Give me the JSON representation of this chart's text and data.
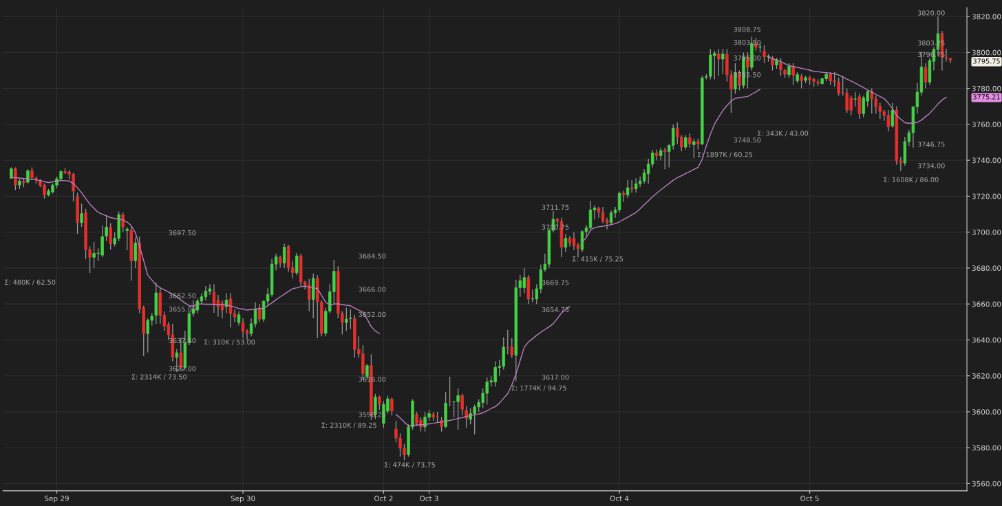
{
  "chart_data": {
    "type": "candlestick",
    "categories": [
      null,
      null,
      null,
      null,
      null,
      null,
      null,
      null,
      null,
      null,
      null,
      "Sep 29",
      null,
      null,
      null,
      null,
      null,
      null,
      null,
      null,
      null,
      null,
      null,
      null,
      null,
      null,
      null,
      null,
      null,
      null,
      null,
      null,
      null,
      null,
      null,
      null,
      null,
      null,
      null,
      null,
      null,
      null,
      null,
      null,
      null,
      null,
      null,
      null,
      null,
      null,
      null,
      null,
      null,
      null,
      null,
      null,
      "Sep 30",
      null,
      null,
      null,
      null,
      null,
      null,
      null,
      null,
      null,
      null,
      null,
      null,
      null,
      null,
      null,
      null,
      null,
      null,
      null,
      null,
      null,
      null,
      null,
      null,
      null,
      null,
      null,
      null,
      null,
      null,
      null,
      null,
      null,
      "Oct 2",
      null,
      null,
      null,
      null,
      null,
      null,
      null,
      null,
      null,
      null,
      "Oct 3",
      null,
      null,
      null,
      null,
      null,
      null,
      null,
      null,
      null,
      null,
      null,
      null,
      null,
      null,
      null,
      null,
      null,
      null,
      null,
      null,
      null,
      null,
      null,
      null,
      null,
      null,
      null,
      null,
      null,
      null,
      null,
      null,
      null,
      null,
      null,
      null,
      null,
      null,
      null,
      null,
      null,
      null,
      null,
      null,
      null,
      "Oct 4",
      null,
      null,
      null,
      null,
      null,
      null,
      null,
      null,
      null,
      null,
      null,
      null,
      null,
      null,
      null,
      null,
      null,
      null,
      null,
      null,
      null,
      null,
      null,
      null,
      null,
      null,
      null,
      null,
      null,
      null,
      null,
      null,
      null,
      null,
      null,
      null,
      null,
      null,
      null,
      null,
      null,
      null,
      null,
      null,
      null,
      "Oct 5",
      null,
      null,
      null,
      null,
      null,
      null,
      null,
      null,
      null,
      null,
      null,
      null,
      null,
      null,
      null,
      null,
      null,
      null,
      null,
      null,
      null,
      null,
      null,
      null,
      null,
      null,
      null,
      null,
      null,
      null,
      null,
      null,
      null,
      null
    ],
    "ohlc": [
      [
        3730.0,
        3736.0,
        3729.7,
        3735.3
      ],
      [
        3735.3,
        3736.0,
        3723.5,
        3726.2
      ],
      [
        3726.2,
        3729.5,
        3724.0,
        3728.5
      ],
      [
        3728.5,
        3730.0,
        3725.0,
        3727.5
      ],
      [
        3727.8,
        3735.0,
        3727.0,
        3734.1
      ],
      [
        3734.1,
        3736.0,
        3729.0,
        3730.3
      ],
      [
        3730.0,
        3731.0,
        3727.0,
        3729.0
      ],
      [
        3728.7,
        3729.5,
        3725.0,
        3726.0
      ],
      [
        3726.2,
        3727.0,
        3718.7,
        3720.7
      ],
      [
        3720.7,
        3724.0,
        3720.0,
        3722.8
      ],
      [
        3722.4,
        3727.0,
        3721.5,
        3726.2
      ],
      [
        3726.2,
        3731.0,
        3724.5,
        3729.7
      ],
      [
        3729.7,
        3734.5,
        3729.0,
        3733.7
      ],
      [
        3733.7,
        3735.7,
        3732.5,
        3733.0
      ],
      [
        3733.5,
        3734.5,
        3729.5,
        3732.2
      ],
      [
        3732.2,
        3733.0,
        3717.2,
        3722.8
      ],
      [
        3719.7,
        3722.0,
        3699.1,
        3705.3
      ],
      [
        3705.3,
        3715.8,
        3702.8,
        3710.3
      ],
      [
        3711.0,
        3713.0,
        3685.0,
        3690.3
      ],
      [
        3690.3,
        3692.0,
        3677.2,
        3686.0
      ],
      [
        3686.0,
        3694.6,
        3680.0,
        3688.2
      ],
      [
        3688.2,
        3691.0,
        3684.0,
        3688.4
      ],
      [
        3687.2,
        3703.5,
        3686.0,
        3697.5
      ],
      [
        3697.8,
        3709.4,
        3695.0,
        3702.8
      ],
      [
        3702.8,
        3705.0,
        3690.3,
        3693.5
      ],
      [
        3693.5,
        3700.0,
        3692.0,
        3696.6
      ],
      [
        3696.6,
        3711.5,
        3695.0,
        3709.7
      ],
      [
        3709.7,
        3711.0,
        3700.0,
        3702.8
      ],
      [
        3700.9,
        3702.8,
        3690.0,
        3701.7
      ],
      [
        3701.0,
        3703.0,
        3673.0,
        3684.1
      ],
      [
        3684.1,
        3697.0,
        3680.0,
        3694.0
      ],
      [
        3694.0,
        3697.5,
        3655.0,
        3657.2
      ],
      [
        3657.8,
        3659.0,
        3631.0,
        3643.5
      ],
      [
        3643.5,
        3652.0,
        3633.0,
        3650.9
      ],
      [
        3650.9,
        3655.0,
        3648.0,
        3653.2
      ],
      [
        3653.7,
        3671.7,
        3649.0,
        3666.2
      ],
      [
        3666.2,
        3669.0,
        3649.0,
        3653.7
      ],
      [
        3653.7,
        3656.0,
        3645.0,
        3647.8
      ],
      [
        3648.5,
        3650.0,
        3640.0,
        3642.8
      ],
      [
        3642.8,
        3649.0,
        3628.0,
        3630.3
      ],
      [
        3630.3,
        3635.0,
        3622.2,
        3632.8
      ],
      [
        3632.8,
        3641.0,
        3623.0,
        3624.7
      ],
      [
        3624.7,
        3645.0,
        3623.4,
        3638.5
      ],
      [
        3638.5,
        3655.6,
        3637.0,
        3654.7
      ],
      [
        3654.7,
        3662.0,
        3653.0,
        3657.2
      ],
      [
        3656.6,
        3663.0,
        3655.0,
        3661.6
      ],
      [
        3661.6,
        3666.0,
        3660.0,
        3664.0
      ],
      [
        3664.0,
        3670.0,
        3662.0,
        3667.2
      ],
      [
        3667.0,
        3671.0,
        3665.0,
        3668.5
      ],
      [
        3666.6,
        3671.0,
        3655.0,
        3659.7
      ],
      [
        3662.2,
        3665.0,
        3653.0,
        3658.5
      ],
      [
        3660.3,
        3662.0,
        3652.0,
        3656.6
      ],
      [
        3658.5,
        3666.0,
        3655.0,
        3662.2
      ],
      [
        3662.8,
        3666.0,
        3647.0,
        3654.7
      ],
      [
        3654.7,
        3657.0,
        3650.0,
        3652.8
      ],
      [
        3649.7,
        3656.0,
        3648.0,
        3654.0
      ],
      [
        3649.7,
        3652.0,
        3641.0,
        3644.7
      ],
      [
        3644.7,
        3646.0,
        3640.0,
        3643.5
      ],
      [
        3643.5,
        3652.0,
        3642.0,
        3649.0
      ],
      [
        3649.0,
        3661.0,
        3647.0,
        3657.2
      ],
      [
        3657.8,
        3660.0,
        3650.0,
        3651.6
      ],
      [
        3651.6,
        3662.0,
        3650.0,
        3661.6
      ],
      [
        3661.6,
        3669.0,
        3659.0,
        3665.3
      ],
      [
        3665.3,
        3685.0,
        3664.0,
        3682.2
      ],
      [
        3682.2,
        3688.0,
        3678.7,
        3686.2
      ],
      [
        3685.9,
        3687.0,
        3680.5,
        3682.8
      ],
      [
        3682.8,
        3693.5,
        3680.0,
        3691.6
      ],
      [
        3692.0,
        3693.0,
        3678.0,
        3680.3
      ],
      [
        3680.3,
        3684.0,
        3674.3,
        3677.4
      ],
      [
        3677.4,
        3688.5,
        3676.0,
        3686.8
      ],
      [
        3686.8,
        3688.0,
        3669.7,
        3672.2
      ],
      [
        3672.2,
        3673.0,
        3668.0,
        3670.3
      ],
      [
        3670.6,
        3674.0,
        3656.0,
        3662.5
      ],
      [
        3662.5,
        3677.0,
        3652.0,
        3674.3
      ],
      [
        3674.3,
        3676.0,
        3641.0,
        3661.2
      ],
      [
        3661.0,
        3662.0,
        3642.0,
        3643.7
      ],
      [
        3643.7,
        3658.0,
        3642.0,
        3656.0
      ],
      [
        3656.0,
        3671.0,
        3655.0,
        3666.8
      ],
      [
        3666.8,
        3684.5,
        3660.0,
        3678.2
      ],
      [
        3678.2,
        3681.0,
        3652.0,
        3654.7
      ],
      [
        3654.7,
        3656.0,
        3643.0,
        3649.7
      ],
      [
        3649.7,
        3658.0,
        3645.0,
        3651.6
      ],
      [
        3651.9,
        3657.0,
        3646.0,
        3652.2
      ],
      [
        3651.9,
        3654.0,
        3630.0,
        3634.7
      ],
      [
        3634.7,
        3642.0,
        3630.0,
        3632.2
      ],
      [
        3632.2,
        3637.0,
        3618.0,
        3621.2
      ],
      [
        3619.7,
        3626.5,
        3618.0,
        3625.7
      ],
      [
        3625.7,
        3632.0,
        3595.5,
        3598.5
      ],
      [
        3598.5,
        3610.0,
        3596.0,
        3608.2
      ],
      [
        3608.2,
        3609.0,
        3601.0,
        3604.1
      ],
      [
        3593.5,
        3606.0,
        3591.0,
        3604.1
      ],
      [
        3600.4,
        3609.0,
        3599.0,
        3607.2
      ],
      [
        3607.0,
        3608.0,
        3598.0,
        3600.5
      ],
      [
        3590.4,
        3595.0,
        3583.0,
        3585.4
      ],
      [
        3585.4,
        3588.0,
        3575.0,
        3579.7
      ],
      [
        3579.7,
        3582.0,
        3573.0,
        3576.0
      ],
      [
        3576.2,
        3593.0,
        3575.0,
        3591.6
      ],
      [
        3591.6,
        3607.0,
        3590.0,
        3606.0
      ],
      [
        3598.5,
        3600.0,
        3592.0,
        3593.5
      ],
      [
        3595.4,
        3597.0,
        3589.0,
        3591.6
      ],
      [
        3591.6,
        3600.0,
        3589.0,
        3597.0
      ],
      [
        3597.0,
        3601.0,
        3595.0,
        3599.0
      ],
      [
        3598.5,
        3600.0,
        3595.0,
        3597.0
      ],
      [
        3597.3,
        3600.0,
        3594.0,
        3597.2
      ],
      [
        3595.2,
        3597.0,
        3589.0,
        3591.8
      ],
      [
        3591.8,
        3611.0,
        3591.0,
        3604.8
      ],
      [
        3605.6,
        3619.5,
        3603.0,
        3605.5
      ],
      [
        3605.5,
        3606.0,
        3597.0,
        3605.6
      ],
      [
        3605.6,
        3613.0,
        3590.0,
        3609.0
      ],
      [
        3609.0,
        3610.0,
        3598.0,
        3601.4
      ],
      [
        3600.8,
        3603.0,
        3591.0,
        3596.4
      ],
      [
        3595.8,
        3602.0,
        3593.0,
        3599.0
      ],
      [
        3599.0,
        3604.0,
        3587.5,
        3602.7
      ],
      [
        3602.7,
        3607.0,
        3600.0,
        3605.2
      ],
      [
        3605.2,
        3613.0,
        3602.0,
        3610.3
      ],
      [
        3610.3,
        3619.0,
        3604.0,
        3616.6
      ],
      [
        3616.6,
        3620.0,
        3614.0,
        3617.3
      ],
      [
        3616.6,
        3628.0,
        3614.0,
        3624.7
      ],
      [
        3624.7,
        3629.0,
        3620.0,
        3625.3
      ],
      [
        3625.3,
        3641.5,
        3623.5,
        3636.0
      ],
      [
        3636.0,
        3645.6,
        3632.0,
        3635.7
      ],
      [
        3636.0,
        3641.0,
        3630.0,
        3631.5
      ],
      [
        3631.5,
        3673.5,
        3617.0,
        3669.0
      ],
      [
        3669.0,
        3676.0,
        3664.0,
        3673.0
      ],
      [
        3669.0,
        3680.0,
        3666.0,
        3674.7
      ],
      [
        3674.7,
        3676.0,
        3660.0,
        3662.8
      ],
      [
        3662.8,
        3668.0,
        3661.0,
        3663.0
      ],
      [
        3662.8,
        3671.0,
        3660.0,
        3668.5
      ],
      [
        3668.5,
        3682.0,
        3666.0,
        3679.1
      ],
      [
        3679.1,
        3688.0,
        3678.0,
        3682.2
      ],
      [
        3682.2,
        3702.0,
        3680.0,
        3701.0
      ],
      [
        3701.0,
        3711.7,
        3700.0,
        3707.2
      ],
      [
        3707.2,
        3708.0,
        3703.0,
        3706.0
      ],
      [
        3706.0,
        3708.0,
        3686.0,
        3691.6
      ],
      [
        3691.6,
        3699.0,
        3689.0,
        3696.6
      ],
      [
        3696.6,
        3698.0,
        3692.0,
        3694.1
      ],
      [
        3696.5,
        3700.0,
        3690.0,
        3692.4
      ],
      [
        3692.8,
        3694.0,
        3686.0,
        3690.9
      ],
      [
        3690.3,
        3701.0,
        3689.0,
        3700.3
      ],
      [
        3700.3,
        3704.0,
        3698.0,
        3702.4
      ],
      [
        3702.4,
        3717.4,
        3701.0,
        3712.4
      ],
      [
        3712.4,
        3715.0,
        3707.0,
        3713.4
      ],
      [
        3713.4,
        3714.0,
        3708.0,
        3711.2
      ],
      [
        3710.9,
        3714.0,
        3705.0,
        3706.2
      ],
      [
        3706.6,
        3708.0,
        3701.5,
        3705.3
      ],
      [
        3705.3,
        3712.0,
        3704.0,
        3710.7
      ],
      [
        3710.7,
        3714.0,
        3708.0,
        3712.4
      ],
      [
        3712.4,
        3722.5,
        3711.0,
        3721.6
      ],
      [
        3721.6,
        3723.0,
        3717.0,
        3720.7
      ],
      [
        3720.7,
        3729.0,
        3719.0,
        3724.7
      ],
      [
        3724.7,
        3729.0,
        3722.0,
        3724.1
      ],
      [
        3724.1,
        3730.0,
        3722.0,
        3726.9
      ],
      [
        3726.9,
        3731.0,
        3725.0,
        3728.5
      ],
      [
        3728.5,
        3735.0,
        3727.0,
        3732.9
      ],
      [
        3732.5,
        3740.9,
        3727.0,
        3737.9
      ],
      [
        3737.9,
        3745.7,
        3736.0,
        3744.1
      ],
      [
        3744.1,
        3746.0,
        3740.0,
        3742.5
      ],
      [
        3742.5,
        3747.0,
        3740.0,
        3745.4
      ],
      [
        3745.6,
        3747.0,
        3735.0,
        3744.8
      ],
      [
        3744.8,
        3749.0,
        3736.0,
        3748.3
      ],
      [
        3748.3,
        3760.0,
        3746.0,
        3757.9
      ],
      [
        3757.9,
        3761.0,
        3749.0,
        3752.9
      ],
      [
        3752.9,
        3754.0,
        3745.0,
        3747.3
      ],
      [
        3747.3,
        3754.0,
        3746.0,
        3752.6
      ],
      [
        3752.6,
        3755.0,
        3747.0,
        3749.1
      ],
      [
        3748.7,
        3752.0,
        3741.2,
        3750.4
      ],
      [
        3750.4,
        3752.0,
        3746.0,
        3749.1
      ],
      [
        3749.1,
        3787.0,
        3748.5,
        3785.8
      ],
      [
        3786.2,
        3788.0,
        3785.0,
        3786.5
      ],
      [
        3786.7,
        3802.0,
        3785.0,
        3798.6
      ],
      [
        3798.2,
        3801.0,
        3785.0,
        3799.5
      ],
      [
        3799.2,
        3802.0,
        3787.0,
        3796.3
      ],
      [
        3796.3,
        3802.0,
        3788.0,
        3799.2
      ],
      [
        3799.0,
        3802.0,
        3783.8,
        3787.6
      ],
      [
        3787.6,
        3790.0,
        3766.5,
        3779.6
      ],
      [
        3779.6,
        3794.0,
        3777.0,
        3788.8
      ],
      [
        3788.8,
        3790.0,
        3779.0,
        3781.7
      ],
      [
        3781.7,
        3800.0,
        3780.0,
        3797.3
      ],
      [
        3797.3,
        3800.0,
        3780.0,
        3791.7
      ],
      [
        3791.7,
        3808.75,
        3790.0,
        3805.1
      ],
      [
        3805.1,
        3808.0,
        3801.0,
        3803.0
      ],
      [
        3803.0,
        3806.0,
        3800.0,
        3803.2
      ],
      [
        3800.7,
        3804.0,
        3794.0,
        3797.6
      ],
      [
        3797.6,
        3799.0,
        3795.0,
        3798.0
      ],
      [
        3797.0,
        3798.0,
        3790.0,
        3793.0
      ],
      [
        3793.0,
        3797.0,
        3791.0,
        3796.0
      ],
      [
        3794.2,
        3797.0,
        3787.0,
        3790.4
      ],
      [
        3790.0,
        3791.0,
        3786.0,
        3787.9
      ],
      [
        3787.6,
        3794.0,
        3786.0,
        3792.3
      ],
      [
        3792.3,
        3794.0,
        3782.0,
        3787.3
      ],
      [
        3784.2,
        3789.0,
        3783.0,
        3787.7
      ],
      [
        3786.7,
        3788.0,
        3780.0,
        3784.2
      ],
      [
        3784.5,
        3787.0,
        3783.0,
        3786.0
      ],
      [
        3786.0,
        3787.0,
        3782.0,
        3784.8
      ],
      [
        3785.0,
        3786.0,
        3781.0,
        3783.8
      ],
      [
        3783.6,
        3785.0,
        3781.5,
        3783.0
      ],
      [
        3782.7,
        3786.0,
        3782.0,
        3785.4
      ],
      [
        3785.4,
        3789.0,
        3784.0,
        3787.9
      ],
      [
        3787.9,
        3789.0,
        3782.0,
        3784.2
      ],
      [
        3784.4,
        3789.0,
        3781.0,
        3783.6
      ],
      [
        3783.6,
        3786.0,
        3776.0,
        3777.3
      ],
      [
        3777.6,
        3787.0,
        3776.0,
        3777.5
      ],
      [
        3777.5,
        3780.0,
        3766.5,
        3767.9
      ],
      [
        3774.8,
        3776.0,
        3765.0,
        3767.9
      ],
      [
        3774.0,
        3778.0,
        3770.0,
        3774.1
      ],
      [
        3775.4,
        3777.0,
        3763.0,
        3766.0
      ],
      [
        3766.0,
        3776.0,
        3764.0,
        3774.8
      ],
      [
        3772.9,
        3779.0,
        3770.0,
        3778.2
      ],
      [
        3778.5,
        3780.0,
        3766.0,
        3774.2
      ],
      [
        3774.2,
        3776.0,
        3766.0,
        3769.8
      ],
      [
        3770.0,
        3772.0,
        3763.0,
        3767.0
      ],
      [
        3767.0,
        3768.0,
        3762.0,
        3765.0
      ],
      [
        3765.0,
        3768.0,
        3756.0,
        3758.5
      ],
      [
        3759.2,
        3772.0,
        3758.0,
        3767.9
      ],
      [
        3767.9,
        3770.0,
        3737.5,
        3739.7
      ],
      [
        3739.7,
        3742.0,
        3734.0,
        3738.5
      ],
      [
        3738.5,
        3753.0,
        3737.0,
        3750.4
      ],
      [
        3750.4,
        3757.0,
        3748.0,
        3755.4
      ],
      [
        3755.4,
        3770.0,
        3747.0,
        3769.8
      ],
      [
        3769.8,
        3783.0,
        3766.0,
        3777.9
      ],
      [
        3777.9,
        3800.5,
        3776.0,
        3792.0
      ],
      [
        3791.7,
        3794.0,
        3780.0,
        3783.6
      ],
      [
        3783.6,
        3797.0,
        3782.0,
        3795.5
      ],
      [
        3795.1,
        3803.0,
        3790.0,
        3801.7
      ],
      [
        3801.7,
        3820.0,
        3798.0,
        3810.5
      ],
      [
        3810.5,
        3812.0,
        3790.0,
        3797.3
      ],
      [
        3797.2,
        3802.0,
        3795.0,
        3797.0
      ],
      [
        3796.7,
        3797.0,
        3794.0,
        3795.75
      ]
    ],
    "series": [
      {
        "type": "line",
        "color": "#b77fc0",
        "values": [
          3730.5,
          3730.3,
          3730.1,
          3729.8,
          3729.6,
          3729.4,
          3729.1,
          3728.7,
          3728.1,
          3727.6,
          3728.0,
          3728.5,
          3728.7,
          3728.6,
          3728.5,
          3727.0,
          3724.7,
          3721.9,
          3718.7,
          3715.6,
          3713.3,
          3711.0,
          3710.0,
          3709.1,
          3708.1,
          3707.6,
          3707.2,
          3706.8,
          3705.6,
          3703.6,
          3699.7,
          3692.2,
          3684.2,
          3676.0,
          3673.3,
          3670.6,
          3669.0,
          3667.9,
          3666.7,
          3665.5,
          3663.9,
          3662.2,
          3660.6,
          3659.0,
          3658.8,
          3660.0,
          3660.0,
          3659.9,
          3659.9,
          3659.8,
          3659.8,
          3659.7,
          3659.5,
          3658.9,
          3658.3,
          3657.4,
          3657.2,
          3656.6,
          3656.9,
          3657.2,
          3657.4,
          3657.7,
          3659.0,
          3660.7,
          3662.4,
          3664.0,
          3665.5,
          3667.0,
          3668.5,
          3669.0,
          3669.6,
          3669.9,
          3669.5,
          3669.0,
          3668.6,
          3664.8,
          3661.0,
          3659.3,
          3660.0,
          3660.1,
          3659.7,
          3659.3,
          3659.0,
          3657.7,
          3656.6,
          3655.5,
          3651.7,
          3647.4,
          3645.0,
          3643.5,
          null,
          null,
          null,
          3598.5,
          3596.5,
          3594.2,
          3592.2,
          3592.4,
          3592.6,
          3592.8,
          3592.9,
          3593.3,
          3593.6,
          3594.0,
          3594.3,
          3594.7,
          3595.2,
          3595.7,
          3596.3,
          3596.8,
          3597.4,
          3597.9,
          3598.3,
          3598.8,
          3599.4,
          3600.6,
          3601.8,
          3602.9,
          3604.8,
          3607.5,
          3610.1,
          3615.0,
          3621.0,
          3628.5,
          3636.0,
          3638.8,
          3640.7,
          3642.6,
          3644.3,
          3645.8,
          3647.3,
          3649.0,
          3652.0,
          3655.0,
          3656.8,
          3658.5,
          null,
          null,
          3694.5,
          3697.0,
          3701.0,
          3702.6,
          3703.0,
          3703.3,
          3703.7,
          3704.2,
          3704.7,
          3705.8,
          3707.0,
          3708.3,
          3709.6,
          3710.9,
          3713.0,
          3715.3,
          3717.5,
          3719.7,
          3721.7,
          3723.5,
          3725.3,
          3727.1,
          3728.9,
          3730.3,
          3731.4,
          3732.6,
          3733.7,
          3734.9,
          3736.1,
          3740.5,
          3748.0,
          3754.5,
          3760.2,
          3764.0,
          3767.7,
          3770.5,
          3773.0,
          3774.5,
          3774.9,
          3775.2,
          3775.5,
          3776.8,
          3778.1,
          3779.5,
          null,
          3797.5,
          3796.6,
          3795.7,
          3794.9,
          3793.8,
          3792.8,
          3792.2,
          3791.7,
          3791.2,
          3790.7,
          3790.2,
          3789.5,
          3789.3,
          3789.0,
          3788.8,
          3788.5,
          3788.2,
          3787.5,
          3786.3,
          3785.2,
          3784.1,
          3783.0,
          3781.7,
          3780.5,
          3779.1,
          3777.9,
          3776.7,
          3775.5,
          3774.3,
          3771.8,
          3768.8,
          3764.9,
          3762.9,
          3760.9,
          3760.6,
          3760.8,
          3761.1,
          3762.4,
          3764.3,
          3766.1,
          3768.7,
          3771.3,
          3773.6,
          3775.1,
          null
        ]
      }
    ],
    "ylim": [
      3556,
      3825
    ],
    "yticks": [
      {
        "value": 3560,
        "label": "3560.00"
      },
      {
        "value": 3580,
        "label": "3580.00"
      },
      {
        "value": 3600,
        "label": "3600.00"
      },
      {
        "value": 3620,
        "label": "3620.00"
      },
      {
        "value": 3640,
        "label": "3640.00"
      },
      {
        "value": 3660,
        "label": "3660.00"
      },
      {
        "value": 3680,
        "label": "3680.00"
      },
      {
        "value": 3700,
        "label": "3700.00"
      },
      {
        "value": 3720,
        "label": "3720.00"
      },
      {
        "value": 3740,
        "label": "3740.00"
      },
      {
        "value": 3760,
        "label": "3760.00"
      },
      {
        "value": 3780,
        "label": "3780.00"
      },
      {
        "value": 3800,
        "label": "3800.00"
      },
      {
        "value": 3820,
        "label": "3820.00"
      }
    ],
    "grid": true,
    "annotations": [
      "Σ: 480K / 62.50",
      "3697.50",
      "3662.50",
      "3655.00",
      "3637.50",
      "3622.00",
      "Σ: 2314K / 73.50",
      "Σ: 310K / 53.00",
      "3684.50",
      "3666.00",
      "3652.00",
      "3616.00",
      "3596.25",
      "Σ: 2310K / 89.25",
      "Σ: 474K / 73.75",
      "3711.75",
      "3700.75",
      "3669.75",
      "3654.75",
      "3617.00",
      "Σ: 1774K / 94.75",
      "Σ: 415K / 75.25",
      "3808.75",
      "3803.50",
      "3795.00",
      "3785.50",
      "3748.50",
      "Σ: 1897K / 60.25",
      "Σ: 343K / 43.00",
      "3820.00",
      "3803.25",
      "3796.75",
      "3746.75",
      "3734.00",
      "Σ: 1608K / 86.00",
      "3795.75",
      "3775.21"
    ]
  }
}
